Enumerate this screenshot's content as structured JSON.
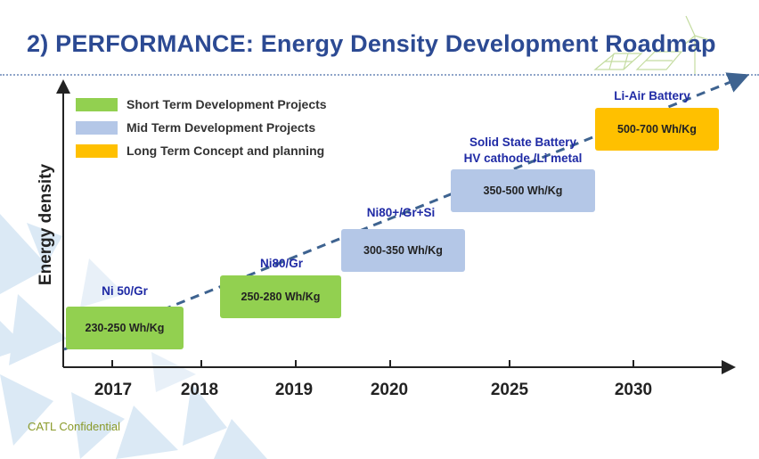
{
  "title": "2) PERFORMANCE: Energy Density Development Roadmap",
  "footer": "CATL Confidential",
  "colors": {
    "short": "#92d050",
    "mid": "#b4c7e7",
    "long": "#ffc000",
    "title": "#2c4a93",
    "project": "#1f2aa5",
    "trend": "#3e6390"
  },
  "chart_data": {
    "type": "bar",
    "ylabel": "Energy density",
    "categories": [
      "2017",
      "2018",
      "2019",
      "2020",
      "2025",
      "2030"
    ],
    "legend": [
      {
        "key": "short",
        "label": "Short Term Development Projects"
      },
      {
        "key": "mid",
        "label": "Mid Term Development Projects"
      },
      {
        "key": "long",
        "label": "Long Term Concept and planning"
      }
    ],
    "milestones": [
      {
        "name": "Ni 50/Gr",
        "range_label": "230-250 Wh/Kg",
        "low": 230,
        "high": 250,
        "term": "short"
      },
      {
        "name": "Ni80/Gr",
        "range_label": "250-280 Wh/Kg",
        "low": 250,
        "high": 280,
        "term": "short"
      },
      {
        "name": "Ni80+/Gr+Si",
        "range_label": "300-350 Wh/Kg",
        "low": 300,
        "high": 350,
        "term": "mid"
      },
      {
        "name": "Solid State Battery",
        "name2": "HV cathode /Li metal",
        "range_label": "350-500 Wh/Kg",
        "low": 350,
        "high": 500,
        "term": "mid"
      },
      {
        "name": "Li-Air Battery",
        "range_label": "500-700 Wh/Kg",
        "low": 500,
        "high": 700,
        "term": "long"
      }
    ]
  }
}
